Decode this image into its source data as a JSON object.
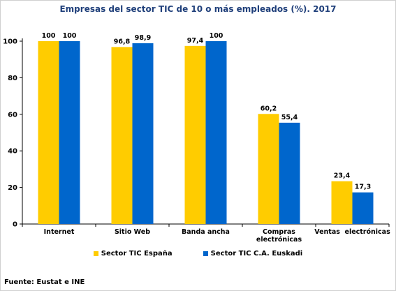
{
  "chart_data": {
    "type": "bar",
    "title": "Empresas del sector TIC de 10 o más empleados (%). 2017",
    "categories": [
      [
        "Internet"
      ],
      [
        "Sitio Web"
      ],
      [
        "Banda ancha"
      ],
      [
        "Compras",
        "electrónicas"
      ],
      [
        "Ventas  electrónicas"
      ]
    ],
    "series": [
      {
        "name": "Sector TIC España",
        "color": "#FFCC00",
        "values": [
          100,
          96.8,
          97.4,
          60.2,
          23.4
        ],
        "labels": [
          "100",
          "96,8",
          "97,4",
          "60,2",
          "23,4"
        ]
      },
      {
        "name": "Sector TIC C.A. Euskadi",
        "color": "#0066CC",
        "values": [
          100,
          98.9,
          100,
          55.4,
          17.3
        ],
        "labels": [
          "100",
          "98,9",
          "100",
          "55,4",
          "17,3"
        ]
      }
    ],
    "ylim": [
      0,
      100
    ],
    "yticks": [
      0,
      20,
      40,
      60,
      80,
      100
    ],
    "grid": false,
    "legend": "bottom"
  },
  "source": "Fuente: Eustat e INE"
}
